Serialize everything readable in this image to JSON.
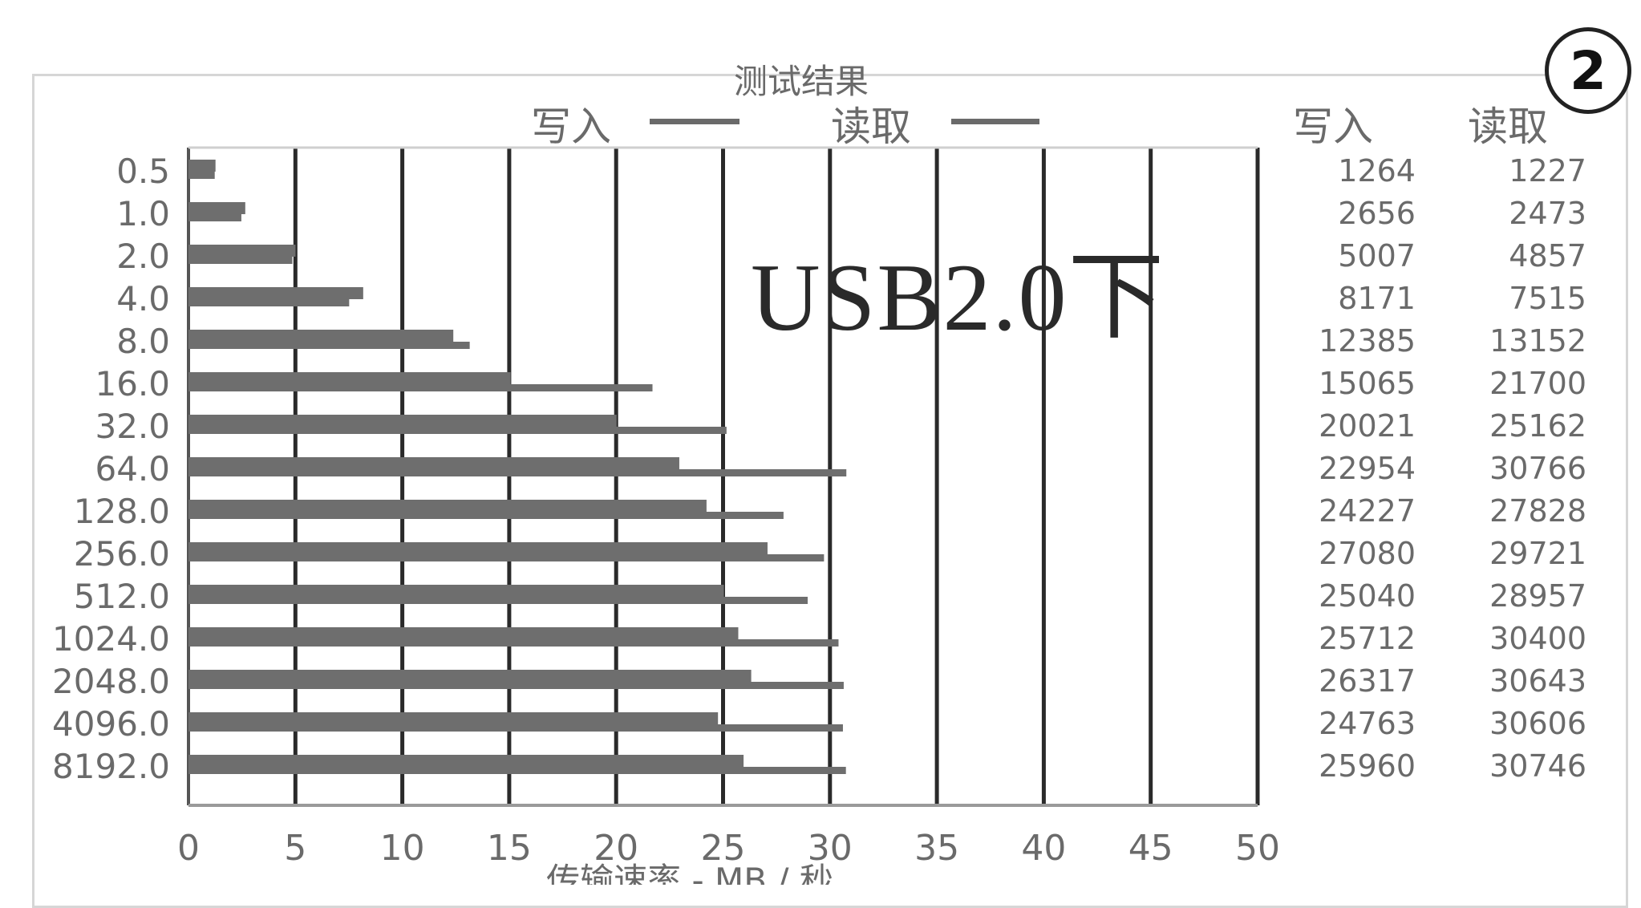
{
  "chart_data": {
    "type": "bar",
    "title": "测试结果",
    "series": [
      {
        "name": "写入",
        "values": [
          1.264,
          2.656,
          5.007,
          8.171,
          12.385,
          15.065,
          20.021,
          22.954,
          24.227,
          27.08,
          25.04,
          25.712,
          26.317,
          24.763,
          25.96
        ]
      },
      {
        "name": "读取",
        "values": [
          1.227,
          2.473,
          4.857,
          7.515,
          13.152,
          21.7,
          25.162,
          30.766,
          27.828,
          29.721,
          28.957,
          30.4,
          30.643,
          30.606,
          30.746
        ]
      }
    ],
    "categories": [
      "0.5",
      "1.0",
      "2.0",
      "4.0",
      "8.0",
      "16.0",
      "32.0",
      "64.0",
      "128.0",
      "256.0",
      "512.0",
      "1024.0",
      "2048.0",
      "4096.0",
      "8192.0"
    ],
    "xlabel": "传输速率 - MB / 秒",
    "xlim": [
      0,
      50
    ],
    "xticks": [
      "0",
      "5",
      "10",
      "15",
      "20",
      "25",
      "30",
      "35",
      "40",
      "45",
      "50"
    ],
    "table": {
      "headers": [
        "写入",
        "读取"
      ],
      "write": [
        "1264",
        "2656",
        "5007",
        "8171",
        "12385",
        "15065",
        "20021",
        "22954",
        "24227",
        "27080",
        "25040",
        "25712",
        "26317",
        "24763",
        "25960"
      ],
      "read": [
        "1227",
        "2473",
        "4857",
        "7515",
        "13152",
        "21700",
        "25162",
        "30766",
        "27828",
        "29721",
        "28957",
        "30400",
        "30643",
        "30606",
        "30746"
      ]
    },
    "annotation": "USB2.0下",
    "badge": "2",
    "colors": {
      "bars": "#6e6e6e",
      "grid": "#2a2a2a",
      "text": "#6a6a6a"
    },
    "grid": true,
    "legend_placement": "top"
  }
}
